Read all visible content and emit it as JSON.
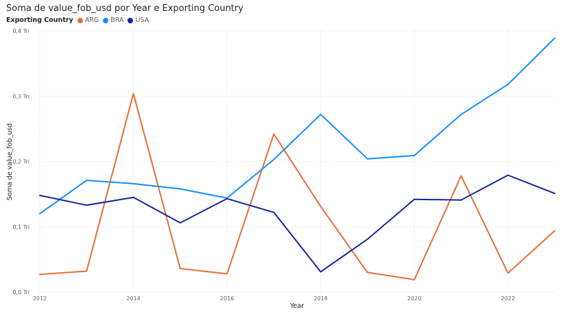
{
  "chart_data": {
    "type": "line",
    "title": "Soma de value_fob_usd por Year e Exporting Country",
    "xlabel": "Year",
    "ylabel": "Soma de value_fob_usd",
    "legend_title": "Exporting Country",
    "x": [
      2012,
      2013,
      2014,
      2015,
      2016,
      2017,
      2018,
      2019,
      2020,
      2021,
      2022,
      2023
    ],
    "x_tick_labels": [
      "2012",
      "2014",
      "2016",
      "2018",
      "2020",
      "2022"
    ],
    "y_tick_labels": [
      "0,0 Tri",
      "0,1 Tri",
      "0,2 Tri",
      "0,3 Tri",
      "0,4 Tri"
    ],
    "y_ticks": [
      0,
      0.1,
      0.2,
      0.3,
      0.4
    ],
    "ylim": [
      0,
      0.4
    ],
    "xlim": [
      2012,
      2023
    ],
    "grid": true,
    "legend_position": "top-left",
    "series": [
      {
        "name": "ARG",
        "color": "#E66C37",
        "values": [
          0.027,
          0.032,
          0.304,
          0.036,
          0.028,
          0.242,
          0.131,
          0.03,
          0.019,
          0.178,
          0.029,
          0.094
        ]
      },
      {
        "name": "BRA",
        "color": "#118DFF",
        "values": [
          0.12,
          0.171,
          0.166,
          0.158,
          0.144,
          0.203,
          0.272,
          0.204,
          0.209,
          0.272,
          0.318,
          0.389
        ]
      },
      {
        "name": "USA",
        "color": "#12239E",
        "values": [
          0.148,
          0.133,
          0.145,
          0.106,
          0.143,
          0.122,
          0.031,
          0.081,
          0.142,
          0.141,
          0.179,
          0.151
        ]
      }
    ]
  }
}
